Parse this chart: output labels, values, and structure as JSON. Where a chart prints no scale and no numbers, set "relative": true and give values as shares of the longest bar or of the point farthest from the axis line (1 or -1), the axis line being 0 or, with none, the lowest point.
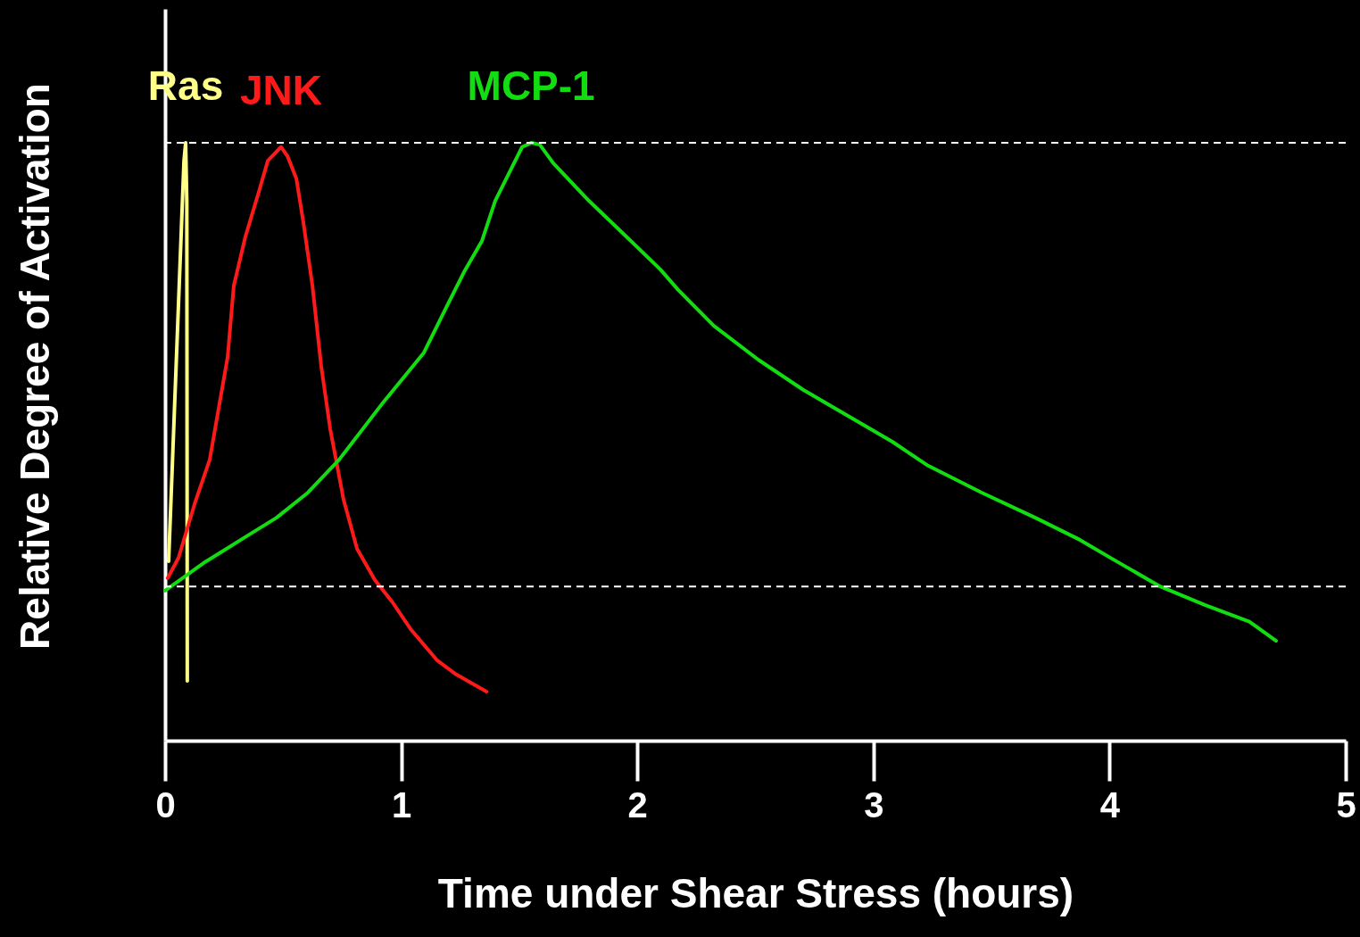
{
  "chart_data": {
    "type": "line",
    "relative": true,
    "xlabel": "Time under Shear Stress (hours)",
    "ylabel": "Relative Degree of Activation",
    "xlim": [
      0,
      5
    ],
    "xticks": [
      0,
      1,
      2,
      3,
      4,
      5
    ],
    "line_style": "solid",
    "marker": "none",
    "series": [
      {
        "name": "Ras",
        "color": "#ffff88",
        "x": [
          0.015,
          0.08,
          0.087,
          0.092,
          0.094
        ],
        "values": [
          0.3,
          0.97,
          1.0,
          0.9,
          0.1
        ]
      },
      {
        "name": "JNK",
        "color": "#ff1a1a",
        "x": [
          0.011,
          0.057,
          0.125,
          0.189,
          0.265,
          0.291,
          0.34,
          0.397,
          0.435,
          0.491,
          0.518,
          0.556,
          0.586,
          0.624,
          0.661,
          0.699,
          0.756,
          0.813,
          0.888,
          0.964,
          1.039,
          1.153,
          1.228,
          1.361
        ],
        "values": [
          0.272,
          0.306,
          0.396,
          0.47,
          0.642,
          0.761,
          0.843,
          0.918,
          0.97,
          0.993,
          0.978,
          0.94,
          0.866,
          0.761,
          0.627,
          0.522,
          0.403,
          0.321,
          0.269,
          0.231,
          0.187,
          0.134,
          0.112,
          0.082
        ]
      },
      {
        "name": "MCP-1",
        "color": "#11dd11",
        "x": [
          0.0,
          0.17,
          0.321,
          0.472,
          0.605,
          0.737,
          0.926,
          1.096,
          1.19,
          1.266,
          1.342,
          1.398,
          1.455,
          1.512,
          1.55,
          1.587,
          1.644,
          1.795,
          1.946,
          2.098,
          2.173,
          2.324,
          2.513,
          2.702,
          3.08,
          3.231,
          3.458,
          3.685,
          3.874,
          4.025,
          4.214,
          4.403,
          4.592,
          4.705
        ],
        "values": [
          0.251,
          0.299,
          0.336,
          0.373,
          0.415,
          0.47,
          0.567,
          0.649,
          0.724,
          0.784,
          0.836,
          0.903,
          0.948,
          0.993,
          1.0,
          0.997,
          0.966,
          0.903,
          0.846,
          0.788,
          0.754,
          0.694,
          0.637,
          0.587,
          0.5,
          0.46,
          0.415,
          0.373,
          0.336,
          0.301,
          0.258,
          0.227,
          0.199,
          0.167
        ]
      }
    ],
    "ref_lines": [
      {
        "axis": "y",
        "value": 1.0,
        "label": null,
        "color": "#ffffff",
        "line_style": "dashed"
      },
      {
        "axis": "y",
        "value": 0.258,
        "label": null,
        "color": "#ffffff",
        "line_style": "dashed"
      }
    ]
  }
}
